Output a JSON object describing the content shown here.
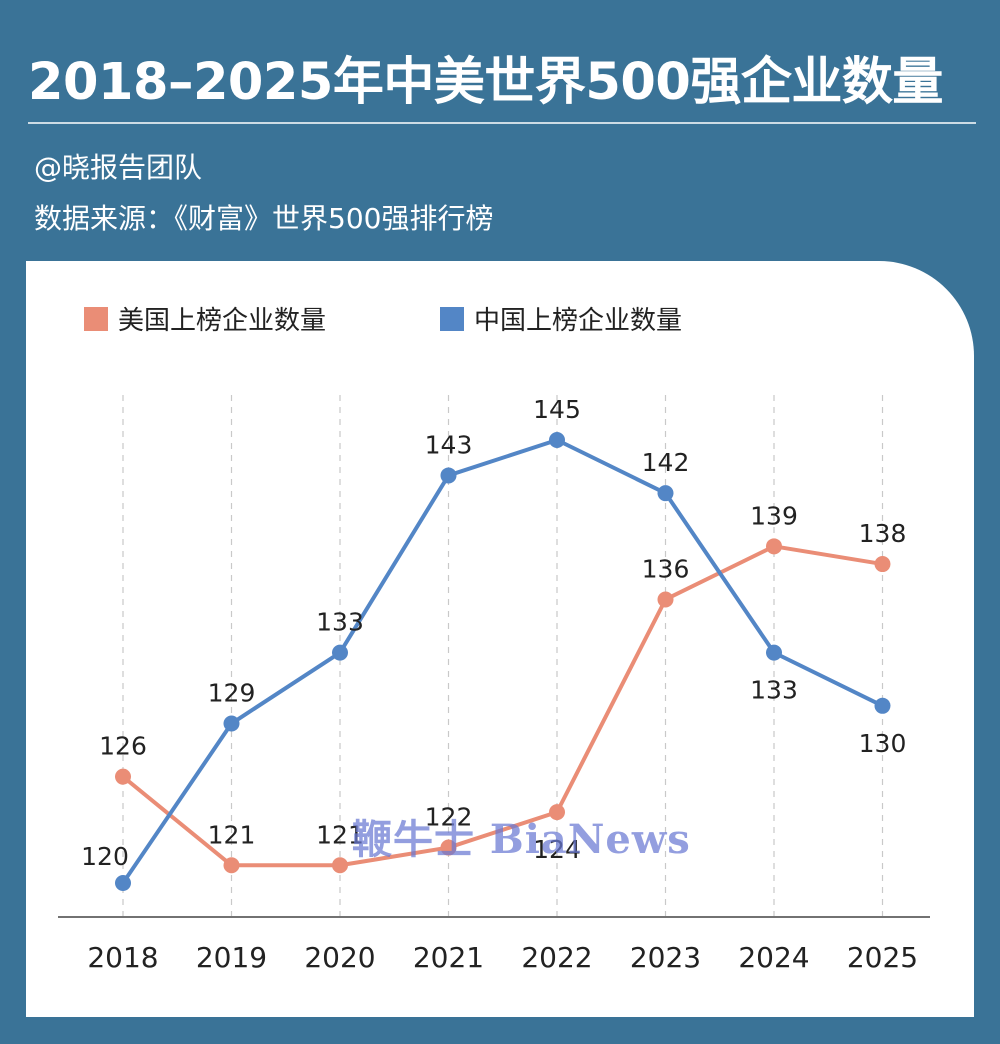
{
  "header": {
    "title": "2018–2025年中美世界500强企业数量",
    "author": "@晓报告团队",
    "source": "数据来源：《财富》世界500强排行榜"
  },
  "watermark": "鞭牛士 BiaNews",
  "chart_data": {
    "type": "line",
    "title": "2018–2025年中美世界500强企业数量",
    "x": [
      "2018",
      "2019",
      "2020",
      "2021",
      "2022",
      "2023",
      "2024",
      "2025"
    ],
    "series": [
      {
        "name": "美国上榜企业数量",
        "color": "#ea8d76",
        "values": [
          126,
          121,
          121,
          122,
          124,
          136,
          139,
          138
        ]
      },
      {
        "name": "中国上榜企业数量",
        "color": "#5386c6",
        "values": [
          120,
          129,
          133,
          143,
          145,
          142,
          133,
          130
        ]
      }
    ],
    "ylim": [
      118,
      148
    ],
    "grid": "vertical-dashed",
    "legend_position": "top-left"
  }
}
